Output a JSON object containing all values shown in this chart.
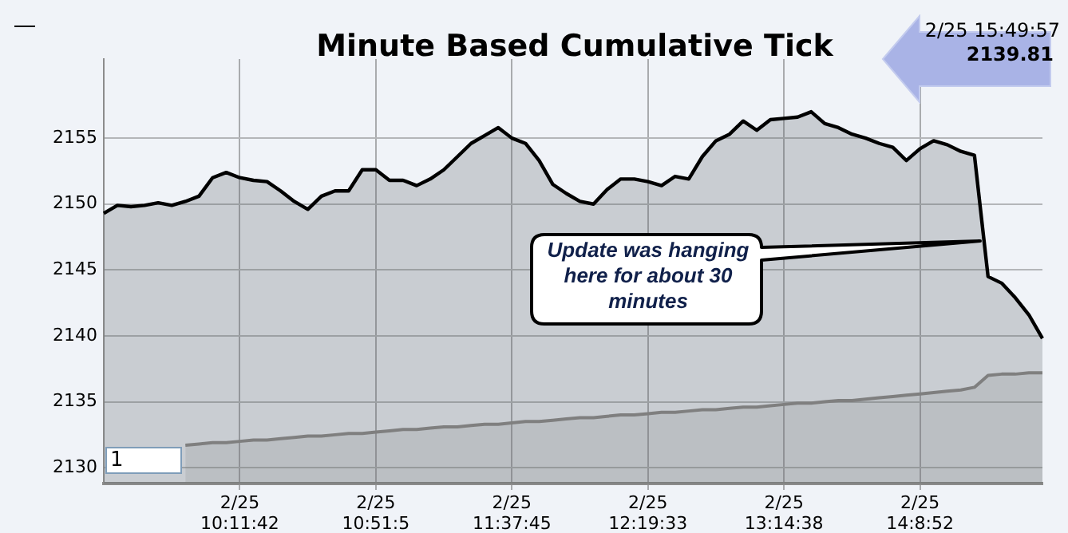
{
  "chart_data": {
    "type": "area",
    "title": "Minute Based Cumulative Tick",
    "categories": [
      null,
      null,
      null,
      null,
      null,
      null,
      null,
      null,
      null,
      null,
      "2/25\n10:11:42",
      null,
      null,
      null,
      null,
      null,
      null,
      null,
      null,
      null,
      "2/25\n10:51:5",
      null,
      null,
      null,
      null,
      null,
      null,
      null,
      null,
      null,
      "2/25\n11:37:45",
      null,
      null,
      null,
      null,
      null,
      null,
      null,
      null,
      null,
      "2/25\n12:19:33",
      null,
      null,
      null,
      null,
      null,
      null,
      null,
      null,
      null,
      "2/25\n13:14:38",
      null,
      null,
      null,
      null,
      null,
      null,
      null,
      null,
      null,
      "2/25\n14:8:52",
      null,
      null,
      null,
      null,
      null,
      null,
      null,
      null,
      null
    ],
    "series": [
      {
        "color": "#000000",
        "values": [
          2149.3,
          2149.9,
          2149.8,
          2149.9,
          2150.1,
          2149.9,
          2150.2,
          2150.6,
          2152.0,
          2152.4,
          2152.0,
          2151.8,
          2151.7,
          2151.0,
          2150.2,
          2149.6,
          2150.6,
          2151.0,
          2151.0,
          2152.6,
          2152.6,
          2151.8,
          2151.8,
          2151.4,
          2151.9,
          2152.6,
          2153.6,
          2154.6,
          2155.2,
          2155.8,
          2155.0,
          2154.6,
          2153.3,
          2151.5,
          2150.8,
          2150.2,
          2150.0,
          2151.1,
          2151.9,
          2151.9,
          2151.7,
          2151.4,
          2152.1,
          2151.9,
          2153.6,
          2154.8,
          2155.3,
          2156.3,
          2155.6,
          2156.4,
          2156.5,
          2156.6,
          2157.0,
          2156.1,
          2155.8,
          2155.3,
          2155.0,
          2154.6,
          2154.3,
          2153.3,
          2154.2,
          2154.8,
          2154.5,
          2154.0,
          2153.7,
          2144.5,
          2144.0,
          2142.9,
          2141.6,
          2139.81
        ]
      },
      {
        "color": "#7f7f7f",
        "values": [
          null,
          null,
          null,
          null,
          null,
          null,
          2131.7,
          2131.8,
          2131.9,
          2131.9,
          2132.0,
          2132.1,
          2132.1,
          2132.2,
          2132.3,
          2132.4,
          2132.4,
          2132.5,
          2132.6,
          2132.6,
          2132.7,
          2132.8,
          2132.9,
          2132.9,
          2133.0,
          2133.1,
          2133.1,
          2133.2,
          2133.3,
          2133.3,
          2133.4,
          2133.5,
          2133.5,
          2133.6,
          2133.7,
          2133.8,
          2133.8,
          2133.9,
          2134.0,
          2134.0,
          2134.1,
          2134.2,
          2134.2,
          2134.3,
          2134.4,
          2134.4,
          2134.5,
          2134.6,
          2134.6,
          2134.7,
          2134.8,
          2134.9,
          2134.9,
          2135.0,
          2135.1,
          2135.1,
          2135.2,
          2135.3,
          2135.4,
          2135.5,
          2135.6,
          2135.7,
          2135.8,
          2135.9,
          2136.1,
          2137.0,
          2137.1,
          2137.1,
          2137.2,
          2137.2
        ]
      }
    ],
    "ylim": [
      2128.8,
      2161
    ],
    "yticks": [
      2130,
      2135,
      2140,
      2145,
      2150,
      2155
    ],
    "grid": true,
    "legend": false,
    "marker": "none",
    "line_style": "solid",
    "annotations": [
      "Update was hanging here for about 30 minutes",
      "2/25 15:49:57",
      "2139.81",
      "1"
    ]
  }
}
